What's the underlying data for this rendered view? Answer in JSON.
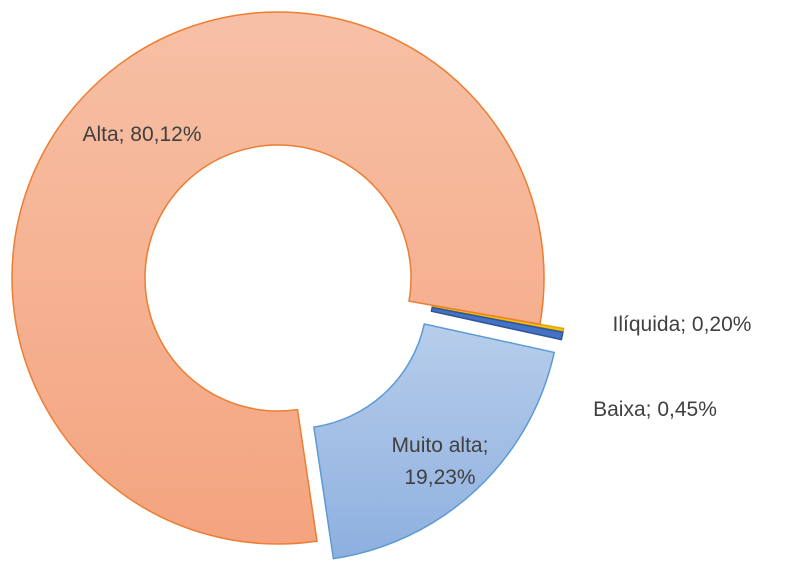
{
  "chart_data": {
    "type": "donut",
    "categories": [
      "Ilíquida",
      "Baixa",
      "Muito alta",
      "Alta"
    ],
    "values": [
      0.2,
      0.45,
      19.23,
      80.12
    ],
    "value_labels": [
      "Ilíquida; 0,20%",
      "Baixa; 0,45%",
      "Muito alta; 19,23%",
      "Alta; 80,12%"
    ],
    "colors": [
      "#ffc000",
      "#4472c4",
      "#a9c4e8",
      "#f5b496"
    ],
    "exploded": [
      true,
      true,
      true,
      false
    ]
  }
}
